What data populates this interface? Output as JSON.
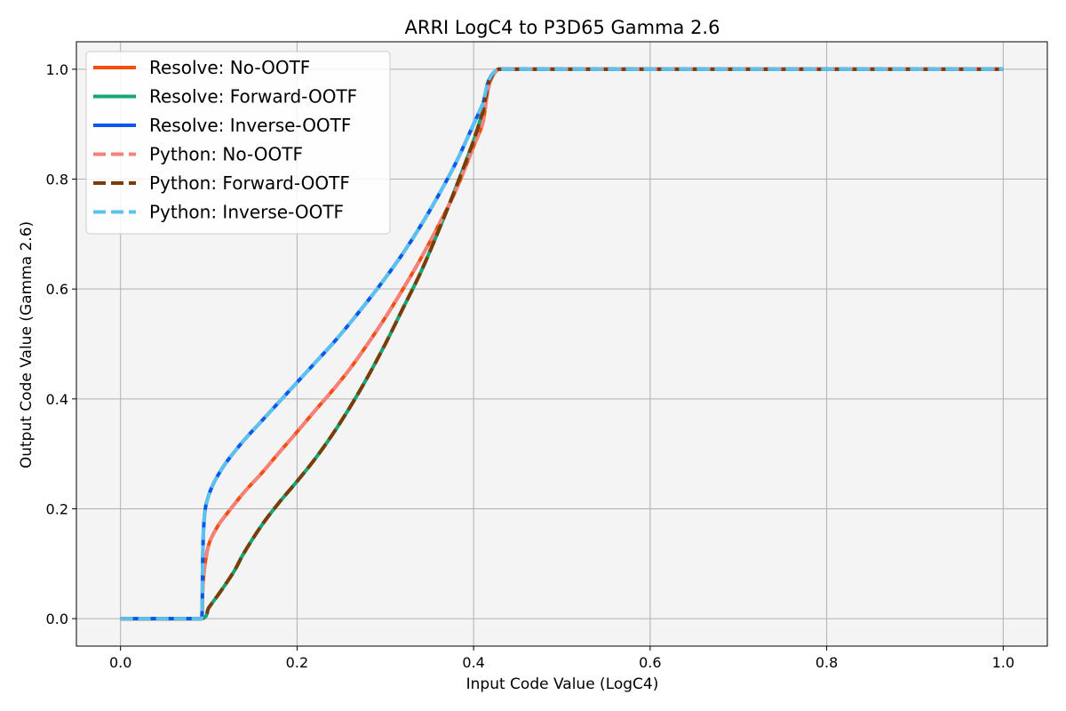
{
  "chart_data": {
    "type": "line",
    "title": "ARRI LogC4 to P3D65 Gamma 2.6",
    "xlabel": "Input Code Value (LogC4)",
    "ylabel": "Output Code Value (Gamma 2.6)",
    "xlim": [
      -0.05,
      1.05
    ],
    "ylim": [
      -0.05,
      1.05
    ],
    "xticks": [
      0.0,
      0.2,
      0.4,
      0.6,
      0.8,
      1.0
    ],
    "yticks": [
      0.0,
      0.2,
      0.4,
      0.6,
      0.8,
      1.0
    ],
    "xtick_labels": [
      "0.0",
      "0.2",
      "0.4",
      "0.6",
      "0.8",
      "1.0"
    ],
    "ytick_labels": [
      "0.0",
      "0.2",
      "0.4",
      "0.6",
      "0.8",
      "1.0"
    ],
    "grid": true,
    "legend_position": "top-left",
    "series": [
      {
        "name": "Resolve: No-OOTF",
        "color": "#f24f0f",
        "style": "solid",
        "x": [
          0.0,
          0.092,
          0.093,
          0.095,
          0.1,
          0.11,
          0.12,
          0.14,
          0.16,
          0.18,
          0.2,
          0.22,
          0.24,
          0.26,
          0.28,
          0.3,
          0.32,
          0.34,
          0.36,
          0.38,
          0.4,
          0.41,
          0.428,
          0.5,
          0.6,
          0.7,
          0.8,
          0.9,
          1.0
        ],
        "y": [
          0.0,
          0.0,
          0.05,
          0.09,
          0.135,
          0.168,
          0.19,
          0.23,
          0.265,
          0.303,
          0.34,
          0.378,
          0.415,
          0.455,
          0.5,
          0.548,
          0.6,
          0.655,
          0.715,
          0.78,
          0.86,
          0.9,
          1.0,
          1.0,
          1.0,
          1.0,
          1.0,
          1.0,
          1.0
        ]
      },
      {
        "name": "Resolve: Forward-OOTF",
        "color": "#13a777",
        "style": "solid",
        "x": [
          0.0,
          0.092,
          0.1,
          0.11,
          0.12,
          0.13,
          0.14,
          0.16,
          0.18,
          0.2,
          0.22,
          0.24,
          0.26,
          0.28,
          0.3,
          0.32,
          0.34,
          0.36,
          0.38,
          0.4,
          0.41,
          0.428,
          0.5,
          0.6,
          0.7,
          0.8,
          0.9,
          1.0
        ],
        "y": [
          0.0,
          0.0,
          0.02,
          0.042,
          0.065,
          0.09,
          0.12,
          0.17,
          0.212,
          0.25,
          0.29,
          0.335,
          0.385,
          0.44,
          0.5,
          0.565,
          0.63,
          0.705,
          0.785,
          0.87,
          0.92,
          1.0,
          1.0,
          1.0,
          1.0,
          1.0,
          1.0,
          1.0
        ]
      },
      {
        "name": "Resolve: Inverse-OOTF",
        "color": "#0b57ec",
        "style": "solid",
        "x": [
          0.0,
          0.092,
          0.093,
          0.094,
          0.096,
          0.1,
          0.105,
          0.11,
          0.12,
          0.14,
          0.16,
          0.18,
          0.2,
          0.22,
          0.24,
          0.26,
          0.28,
          0.3,
          0.32,
          0.34,
          0.36,
          0.38,
          0.4,
          0.41,
          0.428,
          0.5,
          0.6,
          0.7,
          0.8,
          0.9,
          1.0
        ],
        "y": [
          0.0,
          0.0,
          0.1,
          0.16,
          0.2,
          0.225,
          0.245,
          0.26,
          0.285,
          0.325,
          0.36,
          0.395,
          0.43,
          0.465,
          0.5,
          0.538,
          0.578,
          0.62,
          0.665,
          0.715,
          0.77,
          0.83,
          0.9,
          0.935,
          1.0,
          1.0,
          1.0,
          1.0,
          1.0,
          1.0,
          1.0
        ]
      },
      {
        "name": "Python: No-OOTF",
        "color": "#f4827a",
        "style": "dashed",
        "x": [
          0.0,
          0.092,
          0.093,
          0.095,
          0.1,
          0.11,
          0.12,
          0.14,
          0.16,
          0.18,
          0.2,
          0.22,
          0.24,
          0.26,
          0.28,
          0.3,
          0.32,
          0.34,
          0.36,
          0.38,
          0.4,
          0.41,
          0.428,
          0.5,
          0.6,
          0.7,
          0.8,
          0.9,
          1.0
        ],
        "y": [
          0.0,
          0.0,
          0.05,
          0.09,
          0.135,
          0.168,
          0.19,
          0.23,
          0.265,
          0.303,
          0.34,
          0.378,
          0.415,
          0.455,
          0.5,
          0.548,
          0.6,
          0.655,
          0.715,
          0.78,
          0.86,
          0.9,
          1.0,
          1.0,
          1.0,
          1.0,
          1.0,
          1.0,
          1.0
        ]
      },
      {
        "name": "Python: Forward-OOTF",
        "color": "#7a3d08",
        "style": "dashed",
        "x": [
          0.0,
          0.092,
          0.1,
          0.11,
          0.12,
          0.13,
          0.14,
          0.16,
          0.18,
          0.2,
          0.22,
          0.24,
          0.26,
          0.28,
          0.3,
          0.32,
          0.34,
          0.36,
          0.38,
          0.4,
          0.41,
          0.428,
          0.5,
          0.6,
          0.7,
          0.8,
          0.9,
          1.0
        ],
        "y": [
          0.0,
          0.0,
          0.02,
          0.042,
          0.065,
          0.09,
          0.12,
          0.17,
          0.212,
          0.25,
          0.29,
          0.335,
          0.385,
          0.44,
          0.5,
          0.565,
          0.63,
          0.705,
          0.785,
          0.87,
          0.92,
          1.0,
          1.0,
          1.0,
          1.0,
          1.0,
          1.0,
          1.0
        ]
      },
      {
        "name": "Python: Inverse-OOTF",
        "color": "#5bc1ee",
        "style": "dashed",
        "x": [
          0.0,
          0.092,
          0.093,
          0.094,
          0.096,
          0.1,
          0.105,
          0.11,
          0.12,
          0.14,
          0.16,
          0.18,
          0.2,
          0.22,
          0.24,
          0.26,
          0.28,
          0.3,
          0.32,
          0.34,
          0.36,
          0.38,
          0.4,
          0.41,
          0.428,
          0.5,
          0.6,
          0.7,
          0.8,
          0.9,
          1.0
        ],
        "y": [
          0.0,
          0.0,
          0.1,
          0.16,
          0.2,
          0.225,
          0.245,
          0.26,
          0.285,
          0.325,
          0.36,
          0.395,
          0.43,
          0.465,
          0.5,
          0.538,
          0.578,
          0.62,
          0.665,
          0.715,
          0.77,
          0.83,
          0.9,
          0.935,
          1.0,
          1.0,
          1.0,
          1.0,
          1.0,
          1.0,
          1.0
        ]
      }
    ]
  }
}
